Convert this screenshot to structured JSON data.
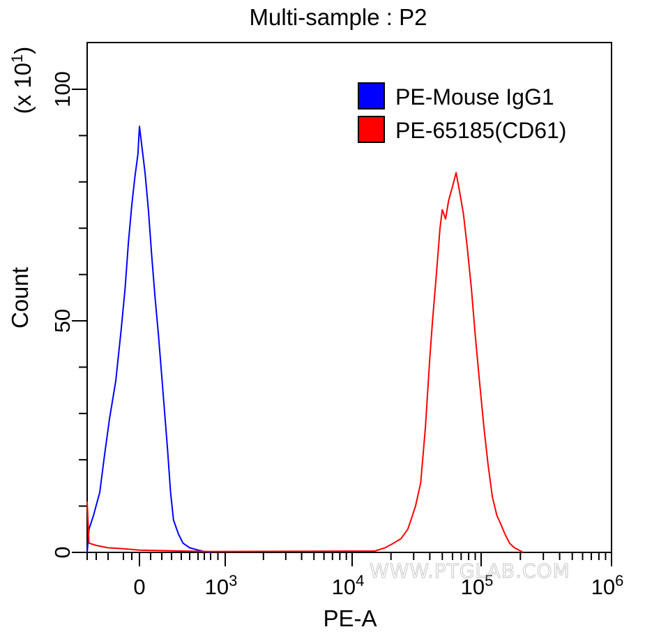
{
  "chart_data": {
    "type": "line",
    "title": "Multi-sample : P2",
    "xlabel": "PE-A",
    "ylabel": "Count",
    "y_multiplier_label": "(x 10",
    "y_multiplier_exp": "1",
    "y_multiplier_close": ")",
    "x_scale": "biexponential",
    "ylim": [
      0,
      100
    ],
    "y_ticks": [
      {
        "value": 0,
        "label": "0"
      },
      {
        "value": 50,
        "label": "50"
      },
      {
        "value": 100,
        "label": "100"
      }
    ],
    "x_ticks": [
      {
        "value": 0,
        "label": "0"
      },
      {
        "value": 1000,
        "label": "10",
        "exp": "3"
      },
      {
        "value": 10000,
        "label": "10",
        "exp": "4"
      },
      {
        "value": 100000,
        "label": "10",
        "exp": "5"
      },
      {
        "value": 1000000,
        "label": "10",
        "exp": "6"
      }
    ],
    "legend_position": "top-right",
    "series": [
      {
        "name": "PE-Mouse IgG1",
        "color": "#0000ff",
        "points": [
          [
            -500,
            0
          ],
          [
            -480,
            5
          ],
          [
            -430,
            8
          ],
          [
            -370,
            13
          ],
          [
            -330,
            21
          ],
          [
            -290,
            29
          ],
          [
            -250,
            37
          ],
          [
            -215,
            48
          ],
          [
            -180,
            57
          ],
          [
            -140,
            67
          ],
          [
            -100,
            75
          ],
          [
            -60,
            81
          ],
          [
            -20,
            86
          ],
          [
            0,
            92
          ],
          [
            20,
            88
          ],
          [
            50,
            82
          ],
          [
            80,
            74
          ],
          [
            110,
            64
          ],
          [
            140,
            55
          ],
          [
            170,
            47
          ],
          [
            200,
            38
          ],
          [
            230,
            30
          ],
          [
            260,
            22
          ],
          [
            290,
            13
          ],
          [
            320,
            7
          ],
          [
            370,
            4
          ],
          [
            420,
            2
          ],
          [
            500,
            1
          ],
          [
            600,
            0.5
          ],
          [
            700,
            0.2
          ],
          [
            800,
            0
          ]
        ]
      },
      {
        "name": "PE-65185(CD61)",
        "color": "#ff0000",
        "points": [
          [
            -500,
            11
          ],
          [
            -480,
            2
          ],
          [
            -400,
            1.5
          ],
          [
            -300,
            1
          ],
          [
            -200,
            0.8
          ],
          [
            0,
            0.5
          ],
          [
            400,
            0.3
          ],
          [
            800,
            0.2
          ],
          [
            15000,
            0.3
          ],
          [
            18000,
            1
          ],
          [
            21000,
            2
          ],
          [
            24000,
            3
          ],
          [
            27000,
            5
          ],
          [
            29000,
            7.5
          ],
          [
            31000,
            10
          ],
          [
            34000,
            15
          ],
          [
            37000,
            27
          ],
          [
            40000,
            42
          ],
          [
            42000,
            50
          ],
          [
            45000,
            60
          ],
          [
            48000,
            70
          ],
          [
            50000,
            74
          ],
          [
            53000,
            72
          ],
          [
            56000,
            76
          ],
          [
            60000,
            79
          ],
          [
            64000,
            82
          ],
          [
            68000,
            78
          ],
          [
            73000,
            73
          ],
          [
            78000,
            66
          ],
          [
            84000,
            57
          ],
          [
            90000,
            47
          ],
          [
            97000,
            37
          ],
          [
            105000,
            27
          ],
          [
            113000,
            19
          ],
          [
            122000,
            12
          ],
          [
            132000,
            8
          ],
          [
            142000,
            6
          ],
          [
            152000,
            4
          ],
          [
            165000,
            2
          ],
          [
            180000,
            1
          ],
          [
            195000,
            0.5
          ],
          [
            210000,
            0
          ]
        ]
      }
    ]
  }
}
